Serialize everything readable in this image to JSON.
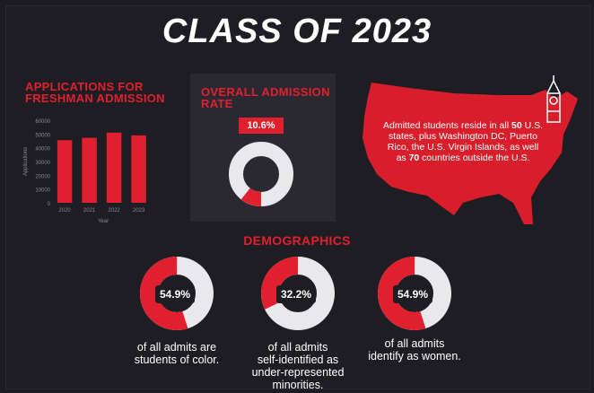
{
  "title": "CLASS OF 2023",
  "applications": {
    "heading_line1": "APPLICATIONS FOR",
    "heading_line2": "FRESHMAN ADMISSION"
  },
  "admission_rate": {
    "heading_line1": "OVERALL ADMISSION",
    "heading_line2": "RATE",
    "badge": "10.6%"
  },
  "map": {
    "text_1": "Admitted students reside in all ",
    "states_count": "50",
    "text_2": " U.S. states, plus Washington DC, Puerto Rico, the U.S. Virgin Islands, as well as ",
    "countries_count": "70",
    "text_3": " countries outside the U.S."
  },
  "demographics": {
    "heading": "DEMOGRAPHICS",
    "items": [
      {
        "value_label": "54.9%",
        "caption_lines": [
          "of all admits are",
          "students of color."
        ]
      },
      {
        "value_label": "32.2%",
        "caption_lines": [
          "of all admits",
          "self-identified as",
          "under-represented",
          "minorities."
        ]
      },
      {
        "value_label": "54.9%",
        "caption_lines": [
          "of all admits",
          "identify as women."
        ]
      }
    ]
  },
  "colors": {
    "accent": "#e0202e",
    "ring_bg": "#e9e8ec",
    "background": "#1e1d23"
  },
  "chart_data": [
    {
      "type": "bar",
      "categories": [
        "2020",
        "2021",
        "2022",
        "2023"
      ],
      "values": [
        45500,
        47200,
        51000,
        49000
      ],
      "xlabel": "Year",
      "ylabel": "Applications",
      "ylim": [
        0,
        60000
      ],
      "yticks": [
        "0",
        "10000",
        "20000",
        "30000",
        "40000",
        "50000",
        "60000"
      ],
      "grid": false
    },
    {
      "type": "pie",
      "title": "OVERALL ADMISSION RATE",
      "values": [
        10.6,
        89.4
      ],
      "display": "donut"
    },
    {
      "type": "pie",
      "values": [
        54.9,
        45.1
      ],
      "display": "donut"
    },
    {
      "type": "pie",
      "values": [
        32.2,
        67.8
      ],
      "display": "donut"
    },
    {
      "type": "pie",
      "values": [
        54.9,
        45.1
      ],
      "display": "donut"
    }
  ]
}
